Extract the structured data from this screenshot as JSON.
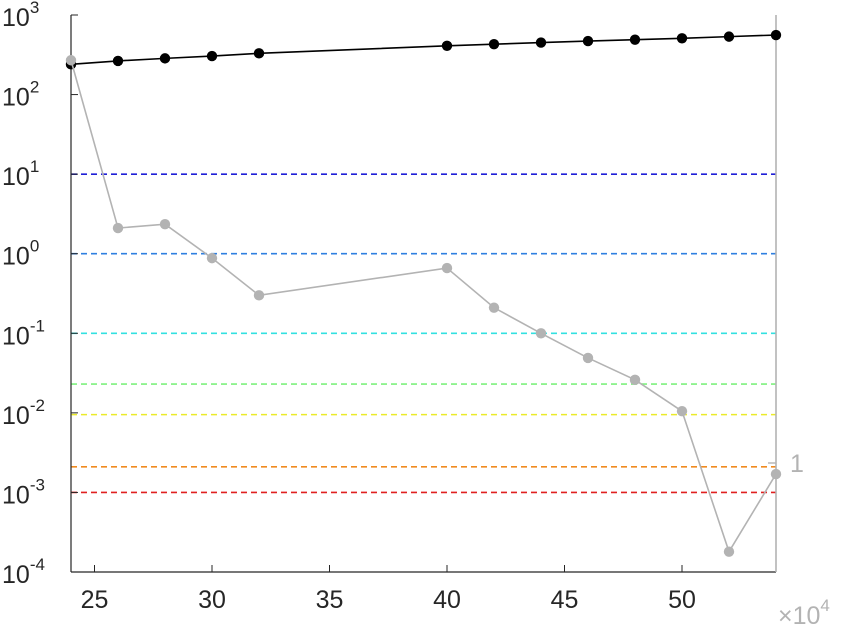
{
  "chart_data": {
    "type": "line",
    "y_scale": "log",
    "ylim": [
      0.0001,
      1000
    ],
    "xlim": [
      24,
      54
    ],
    "x_ticks": [
      25,
      30,
      35,
      40,
      45,
      50
    ],
    "x_multiplier_label": {
      "base": "×10",
      "exp": "4"
    },
    "y_ticks": [
      {
        "value": 1000,
        "base": "10",
        "exp": "3"
      },
      {
        "value": 100,
        "base": "10",
        "exp": "2"
      },
      {
        "value": 10,
        "base": "10",
        "exp": "1"
      },
      {
        "value": 1,
        "base": "10",
        "exp": "0"
      },
      {
        "value": 0.1,
        "base": "10",
        "exp": "-1"
      },
      {
        "value": 0.01,
        "base": "10",
        "exp": "-2"
      },
      {
        "value": 0.001,
        "base": "10",
        "exp": "-3"
      },
      {
        "value": 0.0001,
        "base": "10",
        "exp": "-4"
      }
    ],
    "right_axis_label": "1",
    "series": [
      {
        "color": "#000000",
        "x": [
          24,
          26,
          28,
          30,
          32,
          40,
          42,
          44,
          46,
          48,
          50,
          52,
          54
        ],
        "y": [
          240,
          265,
          285,
          305,
          330,
          410,
          430,
          450,
          470,
          490,
          510,
          535,
          560
        ]
      },
      {
        "color": "#b3b3b3",
        "x": [
          24,
          26,
          28,
          30,
          32,
          40,
          42,
          44,
          46,
          48,
          50,
          52,
          54
        ],
        "y": [
          270,
          2.1,
          2.35,
          0.88,
          0.3,
          0.66,
          0.21,
          0.1,
          0.049,
          0.026,
          0.0105,
          0.00018,
          0.0017
        ]
      }
    ],
    "reference_lines": [
      {
        "y": 10,
        "color": "#1f1fd6"
      },
      {
        "y": 1,
        "color": "#2f7fe0"
      },
      {
        "y": 0.1,
        "color": "#33e0e0"
      },
      {
        "y": 0.023,
        "color": "#7ff07f"
      },
      {
        "y": 0.0095,
        "color": "#ebeb2a"
      },
      {
        "y": 0.0021,
        "color": "#f08a1f"
      },
      {
        "y": 0.001,
        "color": "#e02020"
      }
    ]
  }
}
